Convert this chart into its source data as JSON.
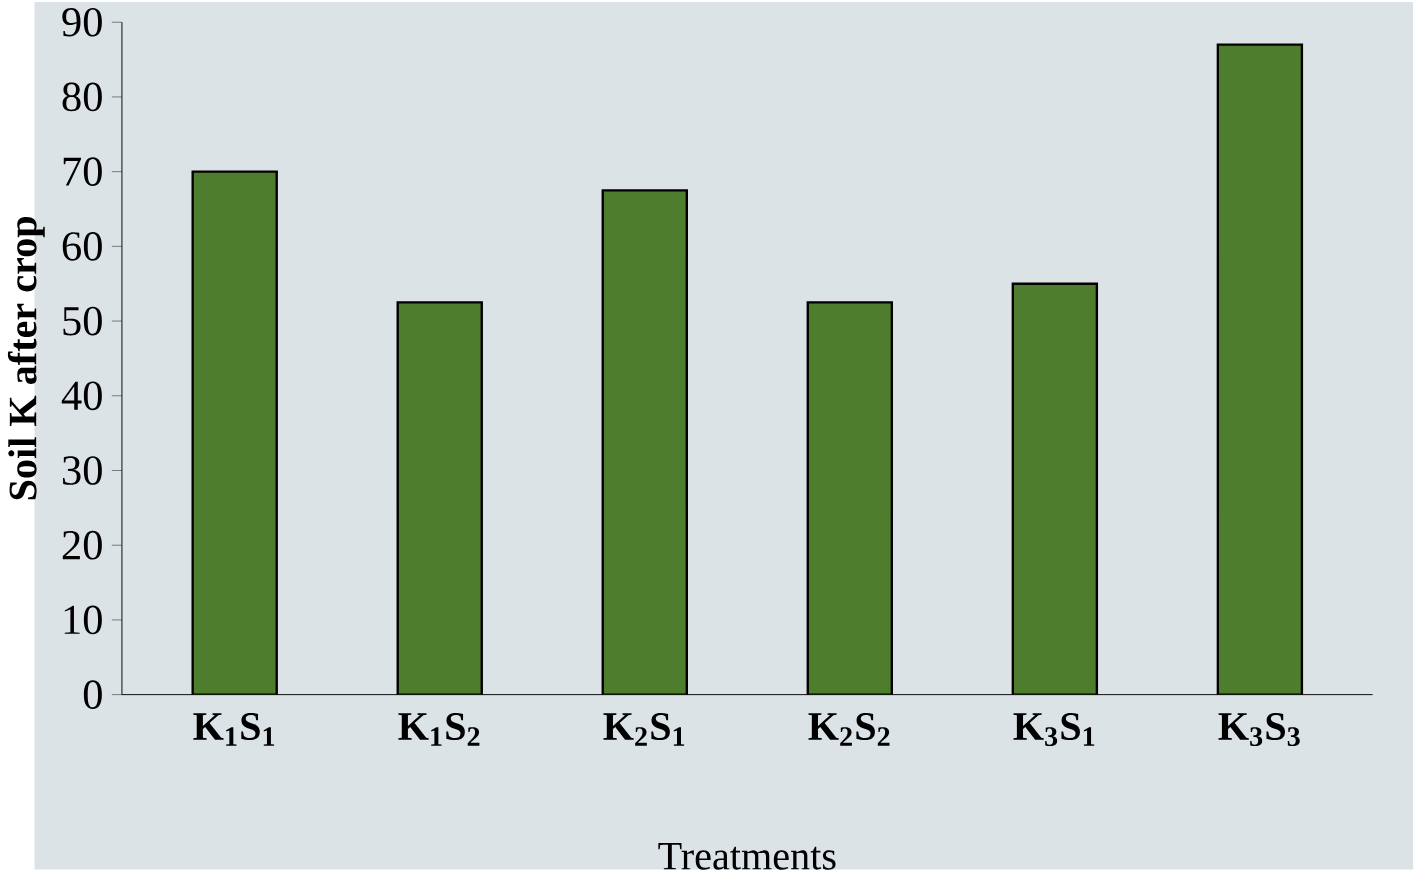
{
  "chart_data": {
    "type": "bar",
    "xlabel": "Treatments",
    "ylabel": "Soil K after crop",
    "categories": [
      "K$_{1}$S$_{1}$",
      "K$_{1}$S$_{2}$",
      "K$_{2}$S$_{1}$",
      "K$_{2}$S$_{2}$",
      "K$_{3}$S$_{1}$",
      "K$_{3}$S$_{3}$"
    ],
    "values": [
      70,
      52.5,
      67.5,
      52.5,
      55,
      87
    ],
    "color": "#4f7d2e",
    "ylim": [
      0,
      90
    ],
    "yticks": [
      0,
      10,
      20,
      30,
      40,
      50,
      60,
      70,
      80,
      90
    ],
    "grid": false
  }
}
